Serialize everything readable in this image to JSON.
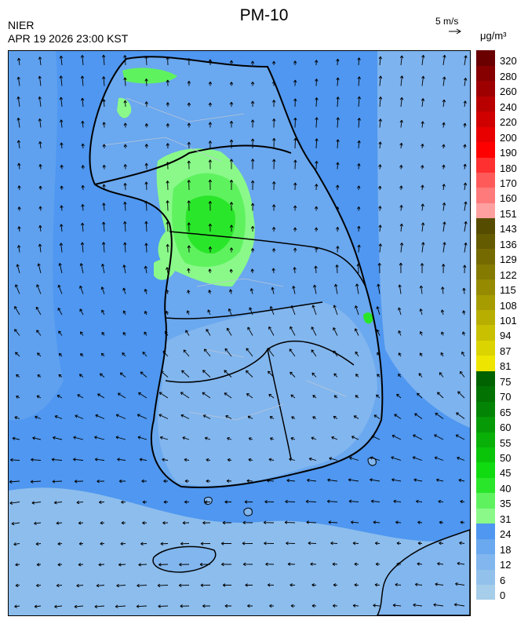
{
  "header": {
    "title": "PM-10",
    "agency": "NIER",
    "timestamp": "APR 19 2026 23:00 KST"
  },
  "wind_reference": {
    "label": "5 m/s"
  },
  "legend": {
    "unit": "μg/m³",
    "bins": [
      {
        "label": "0",
        "color": "#a6cde9"
      },
      {
        "label": "6",
        "color": "#92c1ec"
      },
      {
        "label": "12",
        "color": "#82b6ee"
      },
      {
        "label": "18",
        "color": "#6aa8ef"
      },
      {
        "label": "24",
        "color": "#4f97f0"
      },
      {
        "label": "31",
        "color": "#8af98a"
      },
      {
        "label": "35",
        "color": "#5ff25f"
      },
      {
        "label": "40",
        "color": "#2ae62a"
      },
      {
        "label": "45",
        "color": "#10da10"
      },
      {
        "label": "50",
        "color": "#0ac40a"
      },
      {
        "label": "55",
        "color": "#08b008"
      },
      {
        "label": "60",
        "color": "#069a06"
      },
      {
        "label": "65",
        "color": "#048404"
      },
      {
        "label": "70",
        "color": "#027202"
      },
      {
        "label": "75",
        "color": "#006200"
      },
      {
        "label": "81",
        "color": "#eee600"
      },
      {
        "label": "87",
        "color": "#dcd400"
      },
      {
        "label": "94",
        "color": "#c9c000"
      },
      {
        "label": "101",
        "color": "#b8ae00"
      },
      {
        "label": "108",
        "color": "#a69c00"
      },
      {
        "label": "115",
        "color": "#958a00"
      },
      {
        "label": "122",
        "color": "#847a00"
      },
      {
        "label": "129",
        "color": "#746a00"
      },
      {
        "label": "136",
        "color": "#645a00"
      },
      {
        "label": "143",
        "color": "#564c00"
      },
      {
        "label": "151",
        "color": "#ffa0a0"
      },
      {
        "label": "160",
        "color": "#ff7a7a"
      },
      {
        "label": "170",
        "color": "#ff5a5a"
      },
      {
        "label": "180",
        "color": "#ff3030"
      },
      {
        "label": "190",
        "color": "#ff0000"
      },
      {
        "label": "200",
        "color": "#e80000"
      },
      {
        "label": "220",
        "color": "#d00000"
      },
      {
        "label": "240",
        "color": "#b80000"
      },
      {
        "label": "260",
        "color": "#9e0000"
      },
      {
        "label": "280",
        "color": "#860000"
      },
      {
        "label": "320",
        "color": "#6a0000"
      }
    ]
  },
  "map_colors": {
    "sea": "#4f97f0",
    "south_fill": "#82b6ee",
    "open_sea_fill": "#92c1ec",
    "north_fill": "#6aa8ef",
    "pm_high": "#2ae62a",
    "pm_mid": "#5ff25f",
    "pm_low": "#8af98a",
    "border": "#000000",
    "district_lines": "#b9c6d8",
    "wind_arrows": "#000000"
  },
  "map_icons": {
    "wind": "wind-arrow-icon",
    "reference": "wind-reference-arrow-icon"
  }
}
